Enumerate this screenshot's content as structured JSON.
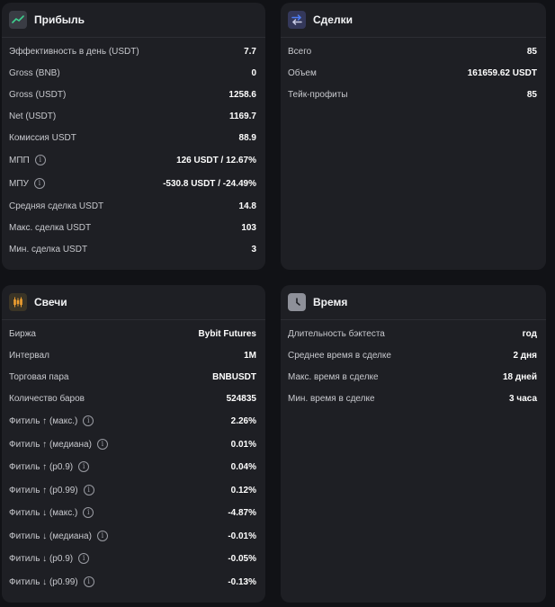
{
  "profit": {
    "title": "Прибыль",
    "icon": "trend-up-icon",
    "rows": [
      {
        "label": "Эффективность в день (USDT)",
        "value": "7.7"
      },
      {
        "label": "Gross (BNB)",
        "value": "0"
      },
      {
        "label": "Gross (USDT)",
        "value": "1258.6"
      },
      {
        "label": "Net (USDT)",
        "value": "1169.7"
      },
      {
        "label": "Комиссия USDT",
        "value": "88.9"
      },
      {
        "label": "МПП",
        "value": "126 USDT / 12.67%"
      },
      {
        "label": "МПУ",
        "value": "-530.8 USDT / -24.49%"
      },
      {
        "label": "Средняя сделка USDT",
        "value": "14.8"
      },
      {
        "label": "Макс. сделка USDT",
        "value": "103"
      },
      {
        "label": "Мин. сделка USDT",
        "value": "3"
      }
    ]
  },
  "deals": {
    "title": "Сделки",
    "icon": "swap-arrows-icon",
    "rows": [
      {
        "label": "Всего",
        "value": "85"
      },
      {
        "label": "Объем",
        "value": "161659.62 USDT"
      },
      {
        "label": "Тейк-профиты",
        "value": "85"
      }
    ]
  },
  "candles": {
    "title": "Свечи",
    "icon": "candlestick-icon",
    "rows": [
      {
        "label": "Биржа",
        "value": "Bybit Futures"
      },
      {
        "label": "Интервал",
        "value": "1M"
      },
      {
        "label": "Торговая пара",
        "value": "BNBUSDT"
      },
      {
        "label": "Количество баров",
        "value": "524835"
      },
      {
        "label": "Фитиль ↑ (макс.)",
        "value": "2.26%"
      },
      {
        "label": "Фитиль ↑ (медиана)",
        "value": "0.01%"
      },
      {
        "label": "Фитиль ↑ (p0.9)",
        "value": "0.04%"
      },
      {
        "label": "Фитиль ↑ (p0.99)",
        "value": "0.12%"
      },
      {
        "label": "Фитиль ↓ (макс.)",
        "value": "-4.87%"
      },
      {
        "label": "Фитиль ↓ (медиана)",
        "value": "-0.01%"
      },
      {
        "label": "Фитиль ↓ (p0.9)",
        "value": "-0.05%"
      },
      {
        "label": "Фитиль ↓ (p0.99)",
        "value": "-0.13%"
      }
    ]
  },
  "time": {
    "title": "Время",
    "icon": "clock-icon",
    "rows": [
      {
        "label": "Длительность бэктеста",
        "value": "год"
      },
      {
        "label": "Среднее время в сделке",
        "value": "2 дня"
      },
      {
        "label": "Макс. время в сделке",
        "value": "18 дней"
      },
      {
        "label": "Мин. время в сделке",
        "value": "3 часа"
      }
    ]
  },
  "colors": {
    "background": "#111216",
    "card": "#1e1f24",
    "accent_green": "#3ecf8e",
    "accent_blue": "#4e7df5",
    "accent_orange": "#f0a030"
  }
}
